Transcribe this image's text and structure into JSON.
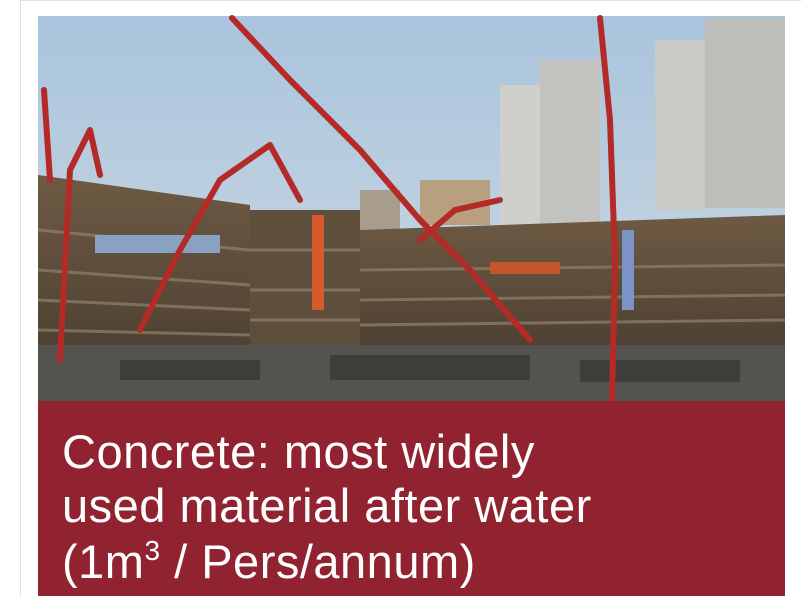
{
  "caption": {
    "lines": [
      "Concrete: most widely",
      "used material after water"
    ],
    "last_line": {
      "before": "(1m",
      "sup": "3",
      "after": " / Pers/annum)"
    }
  }
}
